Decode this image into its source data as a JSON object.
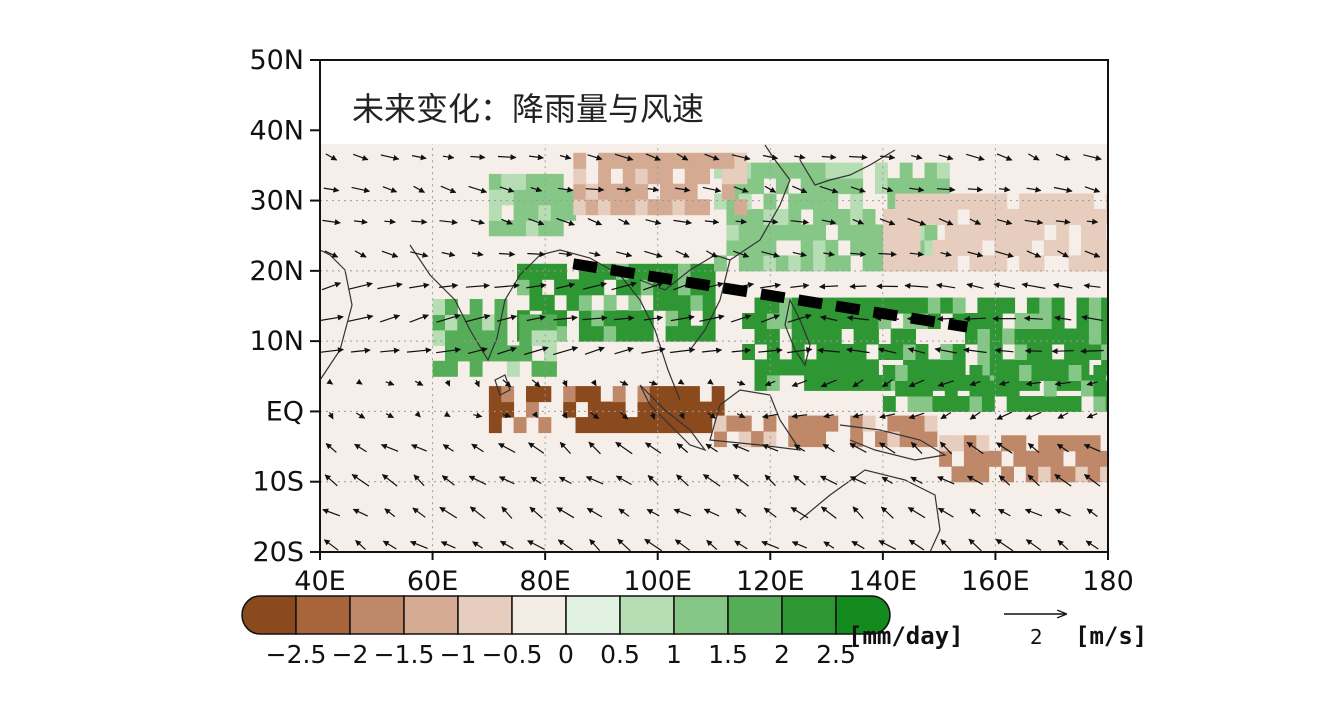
{
  "title": "未来变化：降雨量与风速",
  "map": {
    "lon_range": [
      40,
      180
    ],
    "lat_range": [
      -20,
      50
    ],
    "y_ticks": [
      {
        "value": 50,
        "label": "50N"
      },
      {
        "value": 40,
        "label": "40N"
      },
      {
        "value": 30,
        "label": "30N"
      },
      {
        "value": 20,
        "label": "20N"
      },
      {
        "value": 10,
        "label": "10N"
      },
      {
        "value": 0,
        "label": "EQ"
      },
      {
        "value": -10,
        "label": "10S"
      },
      {
        "value": -20,
        "label": "20S"
      }
    ],
    "x_ticks": [
      {
        "value": 40,
        "label": "40E"
      },
      {
        "value": 60,
        "label": "60E"
      },
      {
        "value": 80,
        "label": "80E"
      },
      {
        "value": 100,
        "label": "100E"
      },
      {
        "value": 120,
        "label": "120E"
      },
      {
        "value": 140,
        "label": "140E"
      },
      {
        "value": 160,
        "label": "160E"
      },
      {
        "value": 180,
        "label": "180"
      }
    ],
    "gridlines": true,
    "monsoon_trough_line": {
      "style": "dashed",
      "color": "#000000",
      "points": [
        [
          85,
          21
        ],
        [
          155,
          12
        ]
      ]
    }
  },
  "rain_regions": [
    {
      "kind": "increase",
      "level": 2.5,
      "lon": [
        75,
        110
      ],
      "lat": [
        10,
        20
      ]
    },
    {
      "kind": "increase",
      "level": 2.0,
      "lon": [
        60,
        80
      ],
      "lat": [
        5,
        15
      ]
    },
    {
      "kind": "increase",
      "level": 2.5,
      "lon": [
        115,
        180
      ],
      "lat": [
        3,
        15
      ]
    },
    {
      "kind": "increase",
      "level": 2.5,
      "lon": [
        140,
        180
      ],
      "lat": [
        0,
        5
      ]
    },
    {
      "kind": "increase",
      "level": 1.5,
      "lon": [
        110,
        150
      ],
      "lat": [
        20,
        35
      ]
    },
    {
      "kind": "increase",
      "level": 1.5,
      "lon": [
        70,
        85
      ],
      "lat": [
        25,
        32
      ]
    },
    {
      "kind": "decrease",
      "level": -2.5,
      "lon": [
        70,
        110
      ],
      "lat": [
        -3,
        3
      ]
    },
    {
      "kind": "decrease",
      "level": -1.5,
      "lon": [
        110,
        150
      ],
      "lat": [
        -5,
        -2
      ]
    },
    {
      "kind": "decrease",
      "level": -1.5,
      "lon": [
        150,
        180
      ],
      "lat": [
        -10,
        -5
      ]
    },
    {
      "kind": "decrease",
      "level": -1.0,
      "lon": [
        85,
        115
      ],
      "lat": [
        28,
        35
      ]
    },
    {
      "kind": "decrease",
      "level": -0.5,
      "lon": [
        140,
        180
      ],
      "lat": [
        20,
        30
      ]
    }
  ],
  "colorbar": {
    "unit": "[mm/day]",
    "colors": [
      "#8b4a1e",
      "#a8653c",
      "#bf8868",
      "#d4ab92",
      "#e6cdbd",
      "#f4ede6",
      "#e2f2e2",
      "#b6ddb4",
      "#86c787",
      "#55ad57",
      "#2e9633",
      "#128a1e"
    ],
    "tick_labels": [
      "-2.5",
      "-2",
      "-1.5",
      "-1",
      "-0.5",
      "0",
      "0.5",
      "1",
      "1.5",
      "2",
      "2.5"
    ]
  },
  "vector_legend": {
    "value": "2",
    "unit": "[m/s]"
  }
}
